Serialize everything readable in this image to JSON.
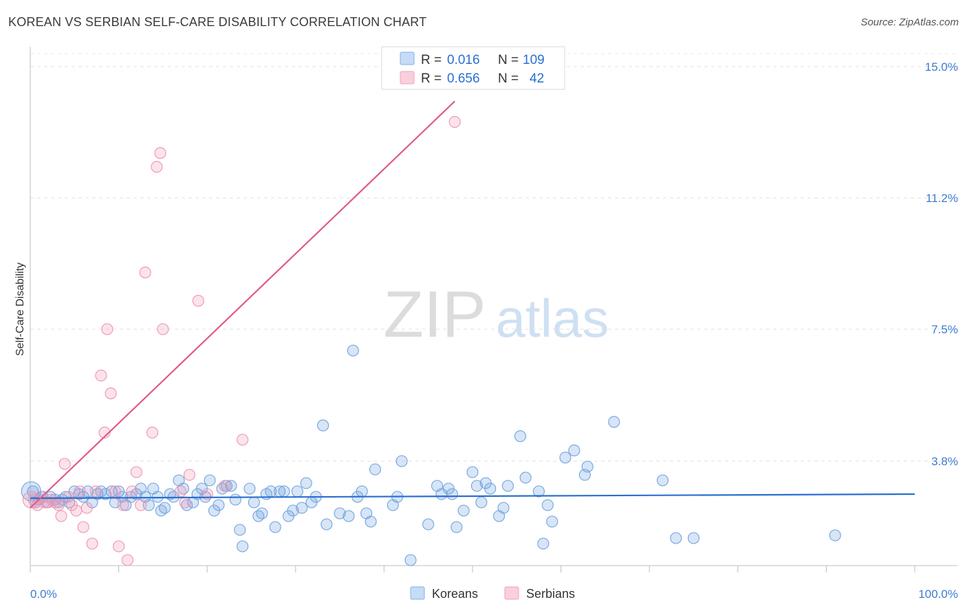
{
  "title": "KOREAN VS SERBIAN SELF-CARE DISABILITY CORRELATION CHART",
  "source": "Source: ZipAtlas.com",
  "watermark": {
    "zip": "ZIP",
    "atlas": "atlas"
  },
  "legend_top": {
    "rows": [
      {
        "r_label": "R =",
        "r_value": "0.016",
        "n_label": "N =",
        "n_value": "109",
        "color": "#7fb0ea"
      },
      {
        "r_label": "R =",
        "r_value": "0.656",
        "n_label": "N =",
        "n_value": "42",
        "color": "#f2a0b8"
      }
    ]
  },
  "chart_data": {
    "type": "scatter",
    "title": "KOREAN VS SERBIAN SELF-CARE DISABILITY CORRELATION CHART",
    "xlabel": "",
    "ylabel": "Self-Care Disability",
    "xlim": [
      0,
      100
    ],
    "ylim": [
      0,
      15.0
    ],
    "x_tick_labels": [
      "0.0%",
      "100.0%"
    ],
    "y_ticks": [
      3.8,
      7.5,
      11.2,
      15.0
    ],
    "y_tick_labels": [
      "3.8%",
      "7.5%",
      "11.2%",
      "15.0%"
    ],
    "grid": true,
    "legend_position": "bottom-center",
    "series": [
      {
        "name": "Koreans",
        "color": "#6fa3e0",
        "line_color": "#2a6fd0",
        "trend": {
          "x": [
            0,
            100
          ],
          "y": [
            2.45,
            2.6
          ]
        },
        "points": [
          [
            0.3,
            2.7
          ],
          [
            0.6,
            2.3
          ],
          [
            1.0,
            2.4
          ],
          [
            1.4,
            2.5
          ],
          [
            1.9,
            2.3
          ],
          [
            2.3,
            2.5
          ],
          [
            2.8,
            2.4
          ],
          [
            3.2,
            2.3
          ],
          [
            3.6,
            2.4
          ],
          [
            4.0,
            2.5
          ],
          [
            4.4,
            2.3
          ],
          [
            5.0,
            2.7
          ],
          [
            5.5,
            2.6
          ],
          [
            6.0,
            2.5
          ],
          [
            6.5,
            2.7
          ],
          [
            7.0,
            2.3
          ],
          [
            7.6,
            2.6
          ],
          [
            8.0,
            2.7
          ],
          [
            8.5,
            2.6
          ],
          [
            9.2,
            2.7
          ],
          [
            9.6,
            2.3
          ],
          [
            10.0,
            2.7
          ],
          [
            10.4,
            2.5
          ],
          [
            10.8,
            2.2
          ],
          [
            11.4,
            2.5
          ],
          [
            12.0,
            2.6
          ],
          [
            12.5,
            2.8
          ],
          [
            13.0,
            2.5
          ],
          [
            13.4,
            2.2
          ],
          [
            13.9,
            2.8
          ],
          [
            14.4,
            2.5
          ],
          [
            14.8,
            2.0
          ],
          [
            15.2,
            2.1
          ],
          [
            15.8,
            2.6
          ],
          [
            16.2,
            2.5
          ],
          [
            16.8,
            3.1
          ],
          [
            17.3,
            2.8
          ],
          [
            17.7,
            2.2
          ],
          [
            18.4,
            2.3
          ],
          [
            18.9,
            2.6
          ],
          [
            19.4,
            2.8
          ],
          [
            19.8,
            2.5
          ],
          [
            20.3,
            3.1
          ],
          [
            20.8,
            2.0
          ],
          [
            21.3,
            2.2
          ],
          [
            21.7,
            2.8
          ],
          [
            22.2,
            2.9
          ],
          [
            22.7,
            2.9
          ],
          [
            23.2,
            2.4
          ],
          [
            23.7,
            1.3
          ],
          [
            24.0,
            0.7
          ],
          [
            24.8,
            2.8
          ],
          [
            25.3,
            2.3
          ],
          [
            25.8,
            1.8
          ],
          [
            26.2,
            1.9
          ],
          [
            26.7,
            2.6
          ],
          [
            27.2,
            2.7
          ],
          [
            27.7,
            1.4
          ],
          [
            28.2,
            2.7
          ],
          [
            28.7,
            2.7
          ],
          [
            29.2,
            1.8
          ],
          [
            29.7,
            2.0
          ],
          [
            30.2,
            2.7
          ],
          [
            30.7,
            2.1
          ],
          [
            31.2,
            3.0
          ],
          [
            31.8,
            2.3
          ],
          [
            32.3,
            2.5
          ],
          [
            33.1,
            4.8
          ],
          [
            33.5,
            1.5
          ],
          [
            35.0,
            1.9
          ],
          [
            36.0,
            1.8
          ],
          [
            36.5,
            6.9
          ],
          [
            37.0,
            2.5
          ],
          [
            37.5,
            2.7
          ],
          [
            38.0,
            1.9
          ],
          [
            38.5,
            1.6
          ],
          [
            39.0,
            3.5
          ],
          [
            41.0,
            2.2
          ],
          [
            41.5,
            2.5
          ],
          [
            42.0,
            3.8
          ],
          [
            43.0,
            0.2
          ],
          [
            45.0,
            1.5
          ],
          [
            46.0,
            2.9
          ],
          [
            46.5,
            2.6
          ],
          [
            47.3,
            2.8
          ],
          [
            47.7,
            2.6
          ],
          [
            48.2,
            1.4
          ],
          [
            49.0,
            2.0
          ],
          [
            50.0,
            3.4
          ],
          [
            50.5,
            2.9
          ],
          [
            51.0,
            2.3
          ],
          [
            51.5,
            3.0
          ],
          [
            52.0,
            2.8
          ],
          [
            53.0,
            1.8
          ],
          [
            53.5,
            2.1
          ],
          [
            54.0,
            2.9
          ],
          [
            55.4,
            4.5
          ],
          [
            56.0,
            3.2
          ],
          [
            57.5,
            2.7
          ],
          [
            58.0,
            0.8
          ],
          [
            58.5,
            2.2
          ],
          [
            59.0,
            1.6
          ],
          [
            60.5,
            3.9
          ],
          [
            61.5,
            4.1
          ],
          [
            62.7,
            3.3
          ],
          [
            63.0,
            3.6
          ],
          [
            66.0,
            4.9
          ],
          [
            71.5,
            3.1
          ],
          [
            73.0,
            1.0
          ],
          [
            75.0,
            1.0
          ],
          [
            91.0,
            1.1
          ]
        ]
      },
      {
        "name": "Serbians",
        "color": "#f19ab5",
        "line_color": "#e0588a",
        "trend": {
          "x": [
            0,
            48
          ],
          "y": [
            2.1,
            14.0
          ]
        },
        "points": [
          [
            0.4,
            2.4
          ],
          [
            0.8,
            2.2
          ],
          [
            1.2,
            2.5
          ],
          [
            1.6,
            2.3
          ],
          [
            2.0,
            2.3
          ],
          [
            2.4,
            2.4
          ],
          [
            2.8,
            2.3
          ],
          [
            3.2,
            2.2
          ],
          [
            3.5,
            1.8
          ],
          [
            3.9,
            3.7
          ],
          [
            4.3,
            2.5
          ],
          [
            4.7,
            2.2
          ],
          [
            5.2,
            2.0
          ],
          [
            5.6,
            2.7
          ],
          [
            6.0,
            1.4
          ],
          [
            6.4,
            2.1
          ],
          [
            7.0,
            0.8
          ],
          [
            7.4,
            2.7
          ],
          [
            8.0,
            6.2
          ],
          [
            8.4,
            4.6
          ],
          [
            8.7,
            7.5
          ],
          [
            9.1,
            5.7
          ],
          [
            9.6,
            2.7
          ],
          [
            10.0,
            0.7
          ],
          [
            10.5,
            2.2
          ],
          [
            11.0,
            0.2
          ],
          [
            11.5,
            2.7
          ],
          [
            12.0,
            3.4
          ],
          [
            12.5,
            2.2
          ],
          [
            13.0,
            9.1
          ],
          [
            13.8,
            4.6
          ],
          [
            14.3,
            12.1
          ],
          [
            14.7,
            12.5
          ],
          [
            15.0,
            7.5
          ],
          [
            17.0,
            2.7
          ],
          [
            17.5,
            2.3
          ],
          [
            18.0,
            3.3
          ],
          [
            19.0,
            8.3
          ],
          [
            20.0,
            2.6
          ],
          [
            22.0,
            2.9
          ],
          [
            24.0,
            4.4
          ],
          [
            48.0,
            13.4
          ]
        ]
      }
    ]
  }
}
